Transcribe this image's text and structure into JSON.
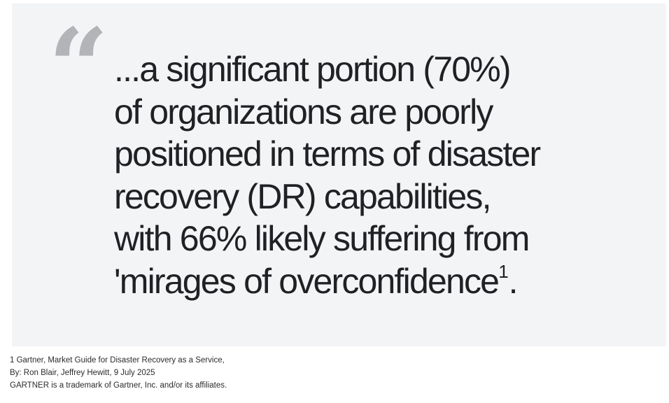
{
  "quote": {
    "mark": "“",
    "lines": [
      "...a significant portion (70%)",
      "of organizations are poorly",
      "positioned in terms of disaster",
      "recovery (DR) capabilities,",
      "with 66% likely suffering from",
      "'mirages of overconfidence"
    ],
    "footnote_ref": "1",
    "closing": "."
  },
  "footnote": {
    "lines": [
      "1 Gartner, Market Guide for Disaster Recovery as a Service,",
      "By: Ron Blair, Jeffrey Hewitt, 9 July 2025",
      "GARTNER is a trademark of Gartner, Inc. and/or its affiliates."
    ]
  },
  "colors": {
    "card_background": "#f3f4f6",
    "quote_mark": "#b2b4b8",
    "text": "#202124"
  }
}
